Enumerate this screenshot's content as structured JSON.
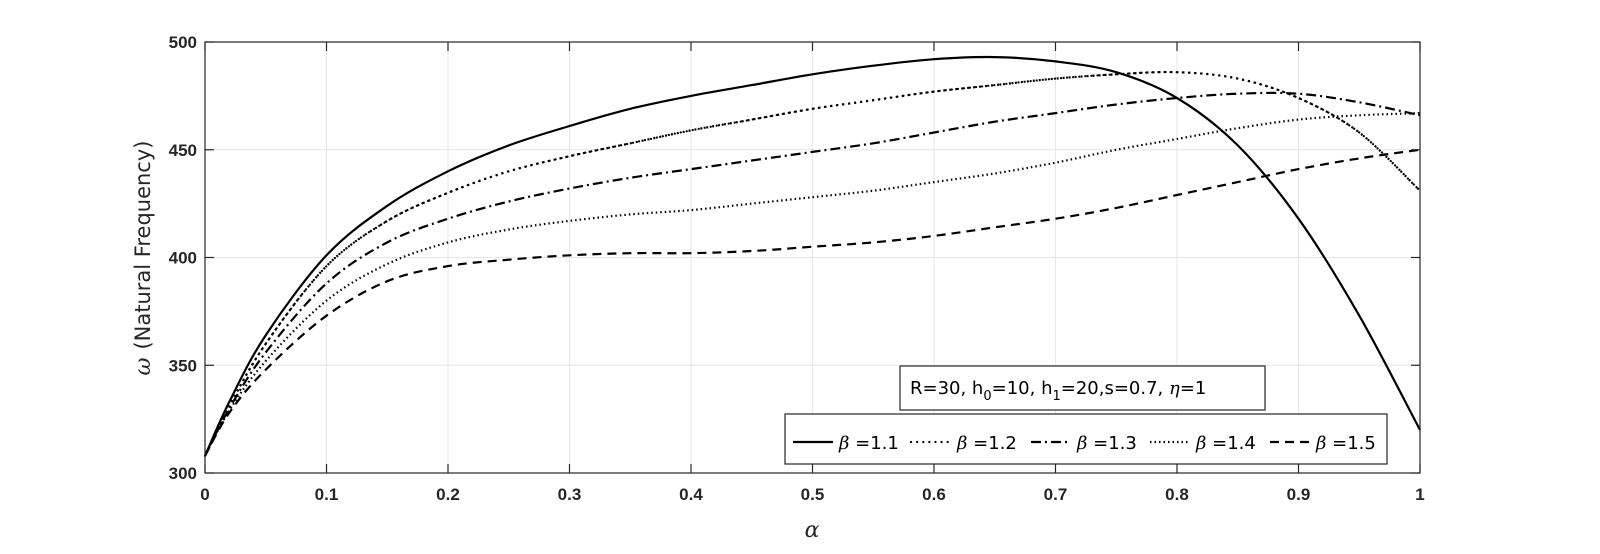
{
  "chart_data": {
    "type": "line",
    "title": "",
    "xlabel": "α",
    "ylabel_symbol": "ω",
    "ylabel_text": "(Natural Frequency)",
    "xlim": [
      0,
      1
    ],
    "ylim": [
      300,
      500
    ],
    "xticks": [
      0,
      0.1,
      0.2,
      0.3,
      0.4,
      0.5,
      0.6,
      0.7,
      0.8,
      0.9,
      1
    ],
    "xtick_labels": [
      "0",
      "0.1",
      "0.2",
      "0.3",
      "0.4",
      "0.5",
      "0.6",
      "0.7",
      "0.8",
      "0.9",
      "1"
    ],
    "yticks": [
      300,
      350,
      400,
      450,
      500
    ],
    "ytick_labels": [
      "300",
      "350",
      "400",
      "450",
      "500"
    ],
    "grid": true,
    "legend_placement": "bottom-right",
    "annotation": {
      "parts": [
        "R=30, h",
        "0",
        "=10, h",
        "1",
        "=20,s=0.7, ",
        "η",
        "=1"
      ]
    },
    "x": [
      0,
      0.02,
      0.05,
      0.1,
      0.15,
      0.2,
      0.25,
      0.3,
      0.35,
      0.4,
      0.45,
      0.5,
      0.55,
      0.6,
      0.65,
      0.7,
      0.75,
      0.8,
      0.85,
      0.9,
      0.95,
      1
    ],
    "series": [
      {
        "name": "β =1.1",
        "symbol": "β",
        "value_label": "=1.1",
        "style": "solid",
        "values": [
          308,
          333,
          364,
          401,
          424,
          440,
          452,
          461,
          469,
          475,
          480,
          485,
          489,
          492,
          493,
          491,
          486,
          474,
          452,
          418,
          373,
          320
        ]
      },
      {
        "name": "β =1.2",
        "symbol": "β",
        "value_label": "=1.2",
        "style": "dotmarker",
        "values": [
          308,
          331,
          360,
          396,
          417,
          430,
          440,
          447,
          453,
          459,
          464,
          469,
          473,
          477,
          480,
          483,
          485,
          486,
          483,
          474,
          458,
          431
        ]
      },
      {
        "name": "β =1.3",
        "symbol": "β",
        "value_label": "=1.3",
        "style": "dashdot",
        "values": [
          308,
          330,
          356,
          388,
          407,
          418,
          426,
          432,
          437,
          441,
          445,
          449,
          453,
          458,
          463,
          467,
          471,
          474,
          476,
          476,
          472,
          466
        ]
      },
      {
        "name": "β =1.4",
        "symbol": "β",
        "value_label": "=1.4",
        "style": "dotted",
        "values": [
          308,
          329,
          352,
          380,
          397,
          407,
          413,
          417,
          420,
          422,
          425,
          428,
          431,
          435,
          439,
          444,
          450,
          455,
          460,
          464,
          466,
          467
        ]
      },
      {
        "name": "β =1.5",
        "symbol": "β",
        "value_label": "=1.5",
        "style": "dashed",
        "values": [
          308,
          328,
          348,
          373,
          389,
          396,
          399,
          401,
          402,
          402,
          403,
          405,
          407,
          410,
          414,
          418,
          423,
          429,
          435,
          441,
          446,
          450
        ]
      }
    ]
  }
}
